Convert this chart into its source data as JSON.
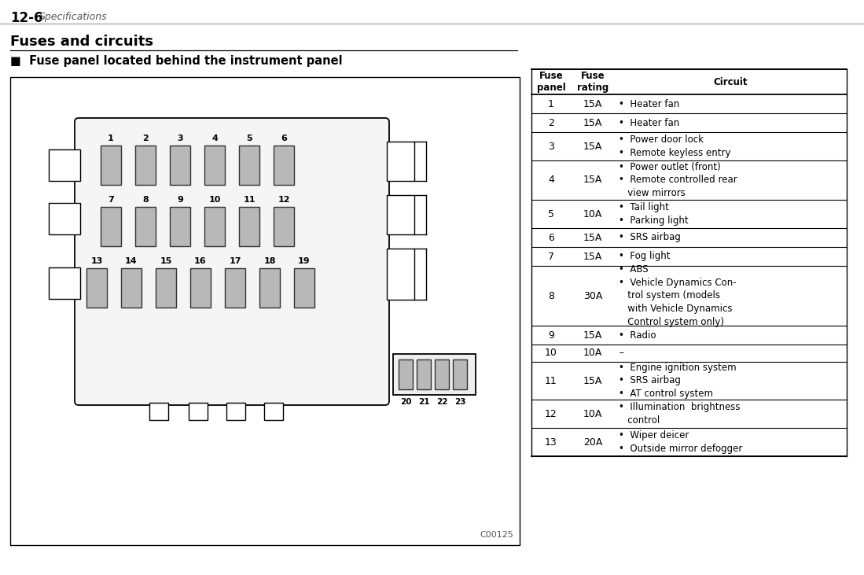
{
  "page_header_bold": "12-6",
  "page_header_italic": "Specifications",
  "section_title": "Fuses and circuits",
  "subsection_title": "■  Fuse panel located behind the instrument panel",
  "diagram_label": "C00125",
  "fuse_numbers_row1": [
    "1",
    "2",
    "3",
    "4",
    "5",
    "6"
  ],
  "fuse_numbers_row2": [
    "7",
    "8",
    "9",
    "10",
    "11",
    "12"
  ],
  "fuse_numbers_row3": [
    "13",
    "14",
    "15",
    "16",
    "17",
    "18",
    "19"
  ],
  "fuse_numbers_bottom": [
    "20",
    "21",
    "22",
    "23"
  ],
  "table_headers": [
    "Fuse\npanel",
    "Fuse\nrating",
    "Circuit"
  ],
  "table_rows": [
    [
      "1",
      "15A",
      "•  Heater fan"
    ],
    [
      "2",
      "15A",
      "•  Heater fan"
    ],
    [
      "3",
      "15A",
      "•  Power door lock\n•  Remote keyless entry"
    ],
    [
      "4",
      "15A",
      "•  Power outlet (front)\n•  Remote controlled rear\n   view mirrors"
    ],
    [
      "5",
      "10A",
      "•  Tail light\n•  Parking light"
    ],
    [
      "6",
      "15A",
      "•  SRS airbag"
    ],
    [
      "7",
      "15A",
      "•  Fog light"
    ],
    [
      "8",
      "30A",
      "•  ABS\n•  Vehicle Dynamics Con-\n   trol system (models\n   with Vehicle Dynamics\n   Control system only)"
    ],
    [
      "9",
      "15A",
      "•  Radio"
    ],
    [
      "10",
      "10A",
      "–"
    ],
    [
      "11",
      "15A",
      "•  Engine ignition system\n•  SRS airbag\n•  AT control system"
    ],
    [
      "12",
      "10A",
      "•  Illumination  brightness\n   control"
    ],
    [
      "13",
      "20A",
      "•  Wiper deicer\n•  Outside mirror defogger"
    ]
  ],
  "bg_color": "#ffffff",
  "fuse_fill_color": "#b8b8b8",
  "fuse_border_color": "#333333",
  "header_gray": "#666666"
}
